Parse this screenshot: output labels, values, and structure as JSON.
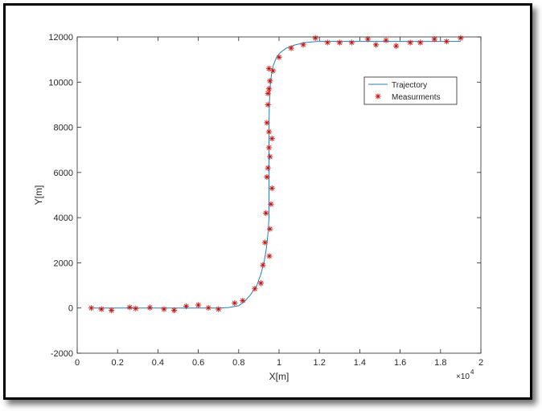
{
  "chart_data": {
    "type": "line",
    "xlabel": "X[m]",
    "ylabel": "Y[m]",
    "x_exponent_label": "×10",
    "x_exponent_power": "4",
    "xlim": [
      0,
      20000
    ],
    "ylim": [
      -2000,
      12000
    ],
    "xticks": [
      0,
      2000,
      4000,
      6000,
      8000,
      10000,
      12000,
      14000,
      16000,
      18000,
      20000
    ],
    "xtick_labels": [
      "0",
      "0.2",
      "0.4",
      "0.6",
      "0.8",
      "1",
      "1.2",
      "1.4",
      "1.6",
      "1.8",
      "2"
    ],
    "yticks": [
      -2000,
      0,
      2000,
      4000,
      6000,
      8000,
      10000,
      12000
    ],
    "ytick_labels": [
      "-2000",
      "0",
      "2000",
      "4000",
      "6000",
      "8000",
      "10000",
      "12000"
    ],
    "grid": false,
    "legend_position": "upper-right",
    "colors": {
      "trajectory": "#2b7bba",
      "measurements": "#e0201c",
      "marker_core": "#3a3a3a",
      "axis": "#262626"
    },
    "series": [
      {
        "name": "Trajectory",
        "style": "line",
        "x": [
          700,
          2000,
          4000,
          6000,
          7000,
          7500,
          8000,
          8300,
          8600,
          8900,
          9100,
          9250,
          9350,
          9420,
          9470,
          9500,
          9500,
          9500,
          9520,
          9560,
          9620,
          9700,
          9850,
          10050,
          10350,
          10800,
          11300,
          11900,
          13000,
          15000,
          17000,
          19000
        ],
        "y": [
          0,
          0,
          0,
          0,
          0,
          20,
          100,
          300,
          600,
          1000,
          1500,
          2000,
          2500,
          3000,
          3500,
          4000,
          6000,
          8000,
          9000,
          9800,
          10300,
          10700,
          11050,
          11300,
          11500,
          11650,
          11750,
          11800,
          11800,
          11800,
          11800,
          11800
        ]
      },
      {
        "name": "Measurments",
        "style": "markers",
        "marker": "*",
        "x": [
          700,
          1200,
          1700,
          2600,
          2900,
          3600,
          4300,
          4800,
          5400,
          6000,
          6500,
          7000,
          7800,
          8200,
          8800,
          9100,
          9200,
          9300,
          9350,
          9400,
          9450,
          9500,
          9520,
          9550,
          9600,
          9650,
          9500,
          9400,
          9450,
          9500,
          9550,
          9500,
          9450,
          9550,
          9650,
          9700,
          10000,
          10600,
          11200,
          11800,
          12400,
          13000,
          13600,
          14400,
          14800,
          15300,
          15800,
          16500,
          17000,
          17700,
          18300,
          19000
        ],
        "y": [
          0,
          -50,
          -100,
          30,
          -20,
          20,
          -50,
          -100,
          80,
          130,
          10,
          -50,
          220,
          330,
          850,
          1100,
          1900,
          2900,
          4200,
          5800,
          6200,
          7100,
          2300,
          3500,
          4600,
          5300,
          7800,
          8200,
          9000,
          9700,
          10050,
          10600,
          9500,
          6700,
          7500,
          10500,
          11100,
          11500,
          11650,
          11950,
          11750,
          11750,
          11750,
          11900,
          11650,
          11850,
          11600,
          11750,
          11750,
          11900,
          11800,
          11950
        ]
      }
    ]
  }
}
